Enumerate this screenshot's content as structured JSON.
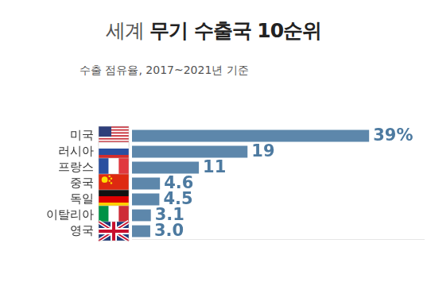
{
  "chart_data": {
    "type": "bar",
    "title": "세계 무기 수출국 10순위",
    "subtitle": "수출 점유율, 2017~2021년 기준",
    "orientation": "horizontal",
    "categories": [
      "미국",
      "러시아",
      "프랑스",
      "중국",
      "독일",
      "이탈리아",
      "영국"
    ],
    "values": [
      39,
      19,
      11,
      4.6,
      4.5,
      3.1,
      3.0
    ],
    "value_labels": [
      "39%",
      "19",
      "11",
      "4.6",
      "4.5",
      "3.1",
      "3.0"
    ],
    "color": "#5d87ab",
    "xlim": [
      0,
      48
    ],
    "xticks": [
      0,
      48
    ],
    "grid": false,
    "data_labels": true,
    "tick_labels": "y"
  }
}
